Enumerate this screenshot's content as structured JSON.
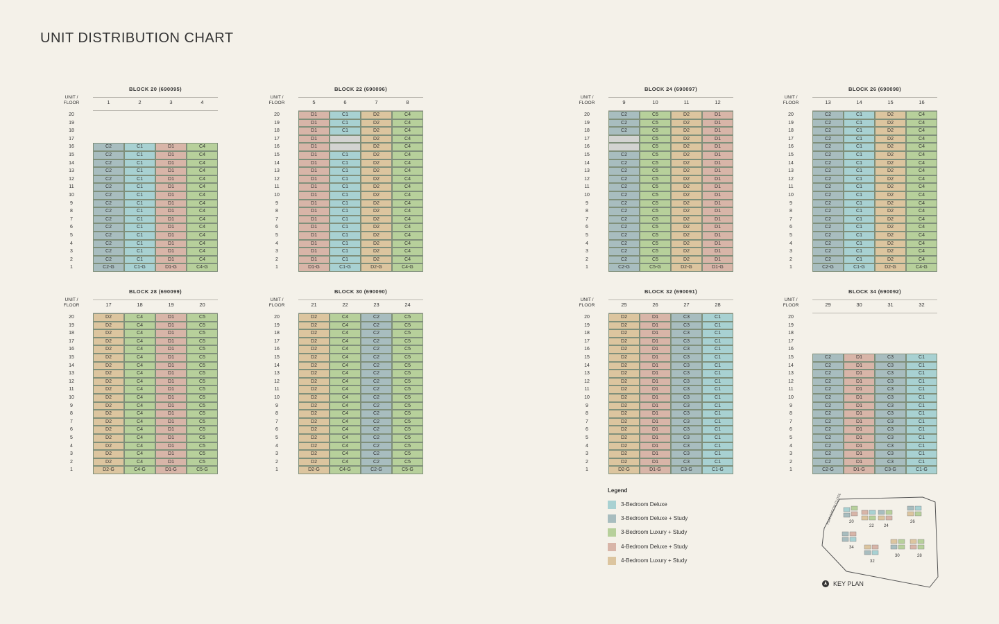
{
  "title": "UNIT DISTRIBUTION CHART",
  "unit_floor_label": [
    "UNIT /",
    "FLOOR"
  ],
  "colors": {
    "C1": "#a8d1d2",
    "C2": "#a8bdbf",
    "C3": "#a8bdbf",
    "C4": "#b7d09b",
    "C5": "#b7d09b",
    "D1": "#d8b5a8",
    "D2": "#dcc59f",
    "EMPTY": "#d3d3d1"
  },
  "blocks": [
    {
      "title": "BLOCK 20 (690095)",
      "units": [
        "1",
        "2",
        "3",
        "4"
      ],
      "types": [
        "C2",
        "C1",
        "D1",
        "C4"
      ],
      "max_floor": 16,
      "ground": [
        "C2-G",
        "C1-G",
        "D1-G",
        "C4-G"
      ],
      "empty": []
    },
    {
      "title": "BLOCK 22 (690096)",
      "units": [
        "5",
        "6",
        "7",
        "8"
      ],
      "types": [
        "D1",
        "C1",
        "D2",
        "C4"
      ],
      "max_floor": 20,
      "ground": [
        "D1-G",
        "C1-G",
        "D2-G",
        "C4-G"
      ],
      "empty": [
        [
          1,
          17
        ],
        [
          1,
          16
        ]
      ]
    },
    {
      "title": "BLOCK 24 (690097)",
      "units": [
        "9",
        "10",
        "11",
        "12"
      ],
      "types": [
        "C2",
        "C5",
        "D2",
        "D1"
      ],
      "max_floor": 20,
      "ground": [
        "C2-G",
        "C5-G",
        "D2-G",
        "D1-G"
      ],
      "empty": [
        [
          0,
          17
        ],
        [
          0,
          16
        ]
      ]
    },
    {
      "title": "BLOCK 26 (690098)",
      "units": [
        "13",
        "14",
        "15",
        "16"
      ],
      "types": [
        "C2",
        "C1",
        "D2",
        "C4"
      ],
      "max_floor": 20,
      "ground": [
        "C2-G",
        "C1-G",
        "D2-G",
        "C4-G"
      ],
      "empty": []
    },
    {
      "title": "BLOCK 28 (690099)",
      "units": [
        "17",
        "18",
        "19",
        "20"
      ],
      "types": [
        "D2",
        "C4",
        "D1",
        "C5"
      ],
      "max_floor": 20,
      "ground": [
        "D2-G",
        "C4-G",
        "D1-G",
        "C5-G"
      ],
      "empty": []
    },
    {
      "title": "BLOCK 30 (690090)",
      "units": [
        "21",
        "22",
        "23",
        "24"
      ],
      "types": [
        "D2",
        "C4",
        "C2",
        "C5"
      ],
      "max_floor": 20,
      "ground": [
        "D2-G",
        "C4-G",
        "C2-G",
        "C5-G"
      ],
      "empty": []
    },
    {
      "title": "BLOCK 32 (690091)",
      "units": [
        "25",
        "26",
        "27",
        "28"
      ],
      "types": [
        "D2",
        "D1",
        "C3",
        "C1"
      ],
      "max_floor": 20,
      "ground": [
        "D2-G",
        "D1-G",
        "C3-G",
        "C1-G"
      ],
      "empty": []
    },
    {
      "title": "BLOCK 34 (690092)",
      "units": [
        "29",
        "30",
        "31",
        "32"
      ],
      "types": [
        "C2",
        "D1",
        "C3",
        "C1"
      ],
      "max_floor": 15,
      "ground": [
        "C2-G",
        "D1-G",
        "C3-G",
        "C1-G"
      ],
      "empty": []
    }
  ],
  "legend": {
    "title": "Legend",
    "items": [
      {
        "label": "3-Bedroom Deluxe",
        "color": "#a8d1d2"
      },
      {
        "label": "3-Bedroom Deluxe + Study",
        "color": "#a8bdbf"
      },
      {
        "label": "3-Bedroom Luxury + Study",
        "color": "#b7d09b"
      },
      {
        "label": "4-Bedroom Deluxe + Study",
        "color": "#d8b5a8"
      },
      {
        "label": "4-Bedroom Luxury + Study",
        "color": "#dcc59f"
      }
    ]
  },
  "keyplan": {
    "label": "KEY PLAN",
    "road": "PLANTATION CLOSE",
    "block_numbers": [
      "20",
      "22",
      "24",
      "26",
      "34",
      "32",
      "30",
      "28"
    ]
  }
}
